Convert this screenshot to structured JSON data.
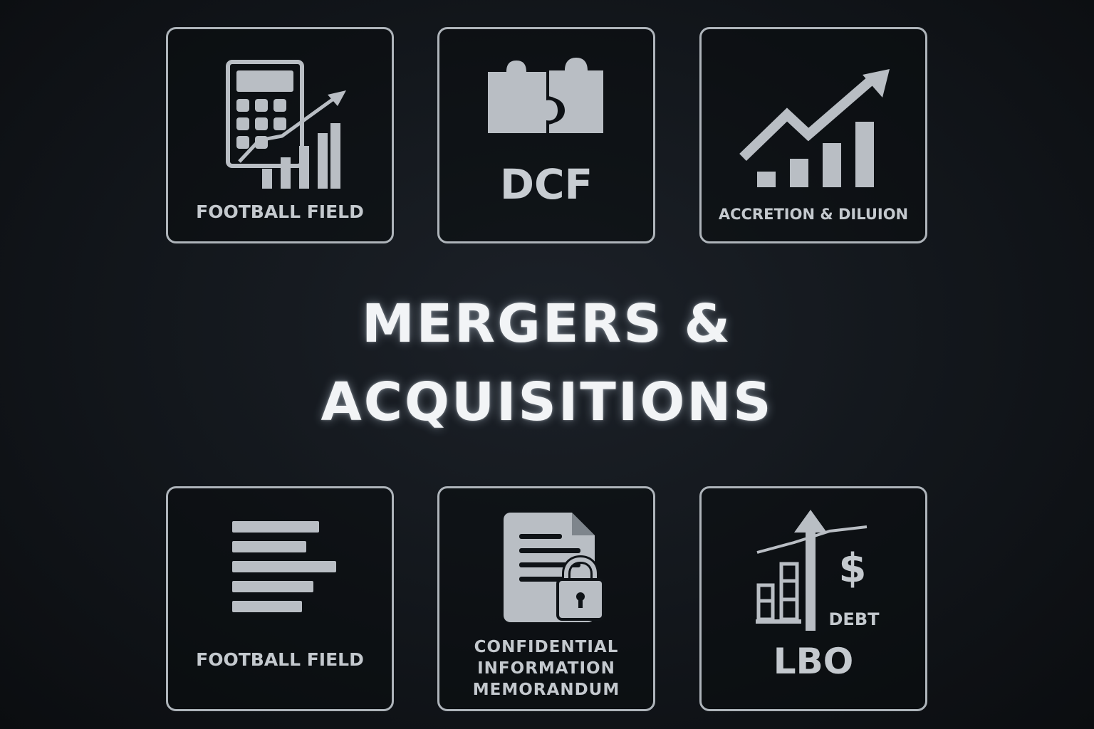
{
  "title": {
    "line1": "MERGERS &",
    "line2": "ACQUISITIONS"
  },
  "cards": [
    {
      "icon": "calculator-chart-icon",
      "label": "FOOTBALL FIELD"
    },
    {
      "icon": "puzzle-icon",
      "label": "DCF"
    },
    {
      "icon": "growth-chart-icon",
      "label": "ACCRETION & DILUION"
    },
    {
      "icon": "horizontal-bars-icon",
      "label": "FOOTBALL FIELD"
    },
    {
      "icon": "locked-document-icon",
      "label_lines": [
        "CONFIDENTIAL",
        "INFORMATION",
        "MEMORANDUM"
      ]
    },
    {
      "icon": "leveraged-buyout-icon",
      "sub_label": "DEBT",
      "dollar": "$",
      "label": "LBO"
    }
  ],
  "colors": {
    "background": "#12161b",
    "border": "#aeb4ba",
    "icon": "#b9bec4",
    "text": "#c4c9ce",
    "title": "#f2f4f6"
  }
}
